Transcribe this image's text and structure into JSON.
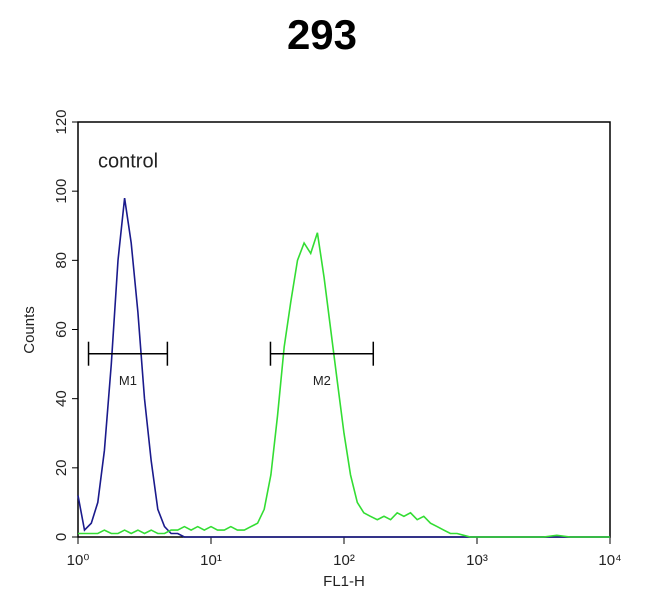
{
  "chart_data": {
    "type": "line",
    "title": "293",
    "x_label": "FL1-H",
    "y_label": "Counts",
    "log_x": true,
    "annotation": "control",
    "x": [
      1,
      1.12,
      1.26,
      1.41,
      1.58,
      1.78,
      2,
      2.24,
      2.51,
      2.82,
      3.16,
      3.55,
      3.98,
      4.47,
      5.01,
      5.62,
      6.31,
      7.08,
      7.94,
      8.91,
      10,
      11.2,
      12.6,
      14.1,
      15.8,
      17.8,
      20,
      22.4,
      25.1,
      28.2,
      31.6,
      35.5,
      39.8,
      44.7,
      50.1,
      56.2,
      63.1,
      70.8,
      79.4,
      89.1,
      100,
      112,
      126,
      141,
      158,
      178,
      200,
      224,
      251,
      282,
      316,
      355,
      398,
      447,
      501,
      562,
      631,
      708,
      794,
      891,
      1000,
      1260,
      1580,
      2000,
      2510,
      3160,
      3980,
      5010,
      6310,
      7940,
      10000
    ],
    "series": [
      {
        "color": "#1a1a8c",
        "values": [
          12,
          2,
          4,
          10,
          25,
          50,
          80,
          98,
          85,
          65,
          40,
          22,
          8,
          3,
          1,
          1,
          0,
          0,
          0,
          0,
          0,
          0,
          0,
          0,
          0,
          0,
          0,
          0,
          0,
          0,
          0,
          0,
          0,
          0,
          0,
          0,
          0,
          0,
          0,
          0,
          0,
          0,
          0,
          0,
          0,
          0,
          0,
          0,
          0,
          0,
          0,
          0,
          0,
          0,
          0,
          0,
          0,
          0,
          0,
          0,
          0,
          0,
          0,
          0,
          0,
          0,
          0,
          0,
          0,
          0,
          0
        ]
      },
      {
        "color": "#33dd33",
        "values": [
          1,
          1,
          1,
          1,
          2,
          1,
          1,
          2,
          1,
          2,
          1,
          2,
          1,
          1,
          2,
          2,
          3,
          2,
          3,
          2,
          3,
          2,
          2,
          3,
          2,
          2,
          3,
          4,
          8,
          18,
          35,
          55,
          68,
          80,
          85,
          82,
          88,
          75,
          60,
          45,
          30,
          18,
          10,
          7,
          6,
          5,
          6,
          5,
          7,
          6,
          7,
          5,
          6,
          4,
          3,
          2,
          1,
          1,
          0.5,
          0,
          0,
          0,
          0,
          0,
          0,
          0,
          0.5,
          0,
          0,
          0,
          0
        ]
      }
    ],
    "gates": [
      {
        "name": "M1",
        "xrange": [
          1.2,
          4.7
        ],
        "y": 53
      },
      {
        "name": "M2",
        "xrange": [
          28,
          166
        ],
        "y": 53
      }
    ],
    "xlim": [
      1,
      10000
    ],
    "xticks": [
      {
        "value": 1,
        "label": "10⁰"
      },
      {
        "value": 10,
        "label": "10¹"
      },
      {
        "value": 100,
        "label": "10²"
      },
      {
        "value": 1000,
        "label": "10³"
      },
      {
        "value": 10000,
        "label": "10⁴"
      }
    ],
    "ylim": [
      0,
      120
    ],
    "yticks": [
      0,
      20,
      40,
      60,
      80,
      100,
      120
    ]
  }
}
